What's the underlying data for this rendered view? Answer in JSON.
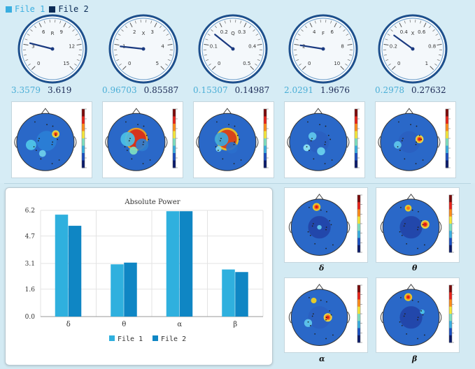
{
  "legend": {
    "file1": "File 1",
    "file2": "File 2",
    "color1": "#3aaee0",
    "color2": "#0b2a55"
  },
  "gauges": [
    {
      "letter": "R",
      "ticks": [
        "0",
        "3",
        "6",
        "9",
        "12",
        "15"
      ],
      "file1": "3.3579",
      "file2": "3.619",
      "fraction": 0.22
    },
    {
      "letter": "X",
      "ticks": [
        "0",
        "1",
        "2",
        "3",
        "4",
        "5"
      ],
      "file1": "0.96703",
      "file2": "0.85587",
      "fraction": 0.19
    },
    {
      "letter": "Q",
      "ticks": [
        "0",
        "0.1",
        "0.2",
        "0.3",
        "0.4",
        "0.5"
      ],
      "file1": "0.15307",
      "file2": "0.14987",
      "fraction": 0.31
    },
    {
      "letter": "F",
      "ticks": [
        "0",
        "2",
        "4",
        "6",
        "8",
        "10"
      ],
      "file1": "2.0291",
      "file2": "1.9676",
      "fraction": 0.2
    },
    {
      "letter": "X",
      "ticks": [
        "0",
        "0.2",
        "0.4",
        "0.6",
        "0.8",
        "1"
      ],
      "file1": "0.2978",
      "file2": "0.27632",
      "fraction": 0.3
    }
  ],
  "band_labels": [
    "δ",
    "θ",
    "α",
    "β"
  ],
  "chart_data": {
    "type": "bar",
    "title": "Absolute Power",
    "categories": [
      "δ",
      "θ",
      "α",
      "β"
    ],
    "series": [
      {
        "name": "File 1",
        "values": [
          5.95,
          3.05,
          6.15,
          2.75
        ],
        "color": "#2fb0de"
      },
      {
        "name": "File 2",
        "values": [
          5.3,
          3.15,
          6.15,
          2.6
        ],
        "color": "#0f86c4"
      }
    ],
    "yticks": [
      "0.0",
      "1.6",
      "3.1",
      "4.7",
      "6.2"
    ],
    "ylim": [
      0,
      6.2
    ],
    "grid": true,
    "legend_position": "bottom"
  }
}
